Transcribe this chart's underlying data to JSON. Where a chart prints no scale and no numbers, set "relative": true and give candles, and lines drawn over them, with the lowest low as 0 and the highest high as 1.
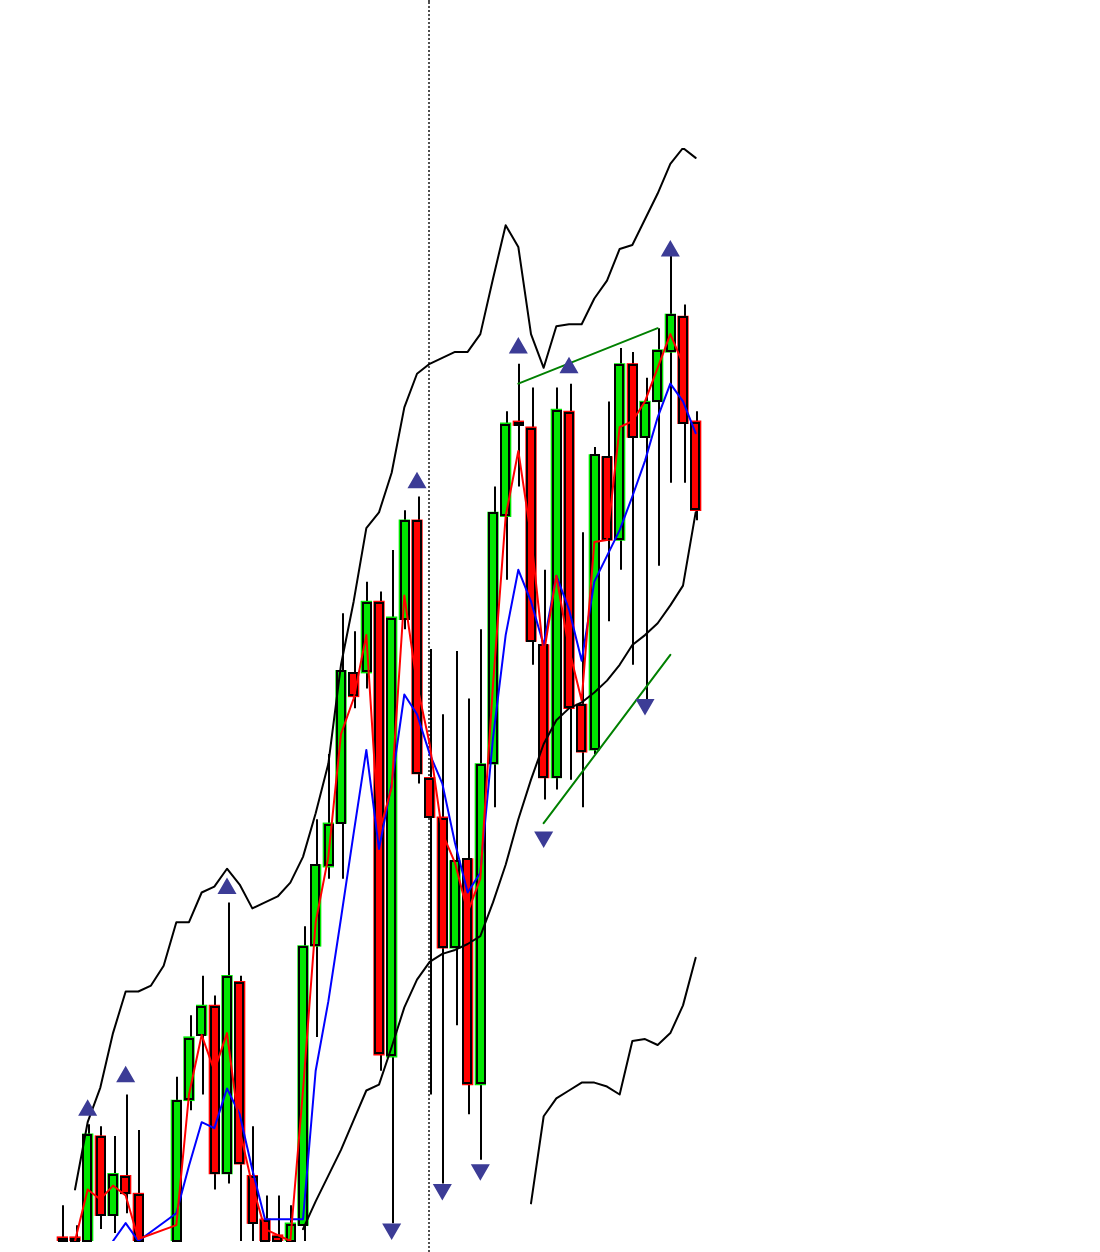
{
  "chart_data": {
    "type": "candlestick",
    "relative": true,
    "categories": [
      null,
      null,
      null,
      null,
      null,
      null,
      null,
      null,
      null,
      null,
      null,
      null,
      null,
      null,
      null,
      null,
      null,
      null,
      null,
      null,
      null,
      null,
      null,
      null,
      null,
      null,
      null,
      null,
      null,
      null,
      null,
      null,
      null,
      null,
      null,
      null,
      null,
      null,
      null,
      null,
      null,
      null,
      null,
      null,
      null,
      null,
      null,
      null,
      null,
      null,
      null
    ],
    "series": [
      {
        "ohlc": [
          [
            0.004,
            0.036,
            0,
            0
          ],
          [
            0.004,
            0.016,
            0,
            0
          ],
          [
            0,
            0.118,
            0,
            0.108
          ],
          [
            0.106,
            0.116,
            0.012,
            0.026
          ],
          [
            0.026,
            0.106,
            0.008,
            0.068
          ],
          [
            0.066,
            0.148,
            0.028,
            0.048
          ],
          [
            0.048,
            0.112,
            0,
            0
          ],
          null,
          null,
          [
            0,
            0.166,
            0,
            0.142
          ],
          [
            0.142,
            0.228,
            0.132,
            0.206
          ],
          [
            0.208,
            0.268,
            0.148,
            0.238
          ],
          [
            0.238,
            0.248,
            0.052,
            0.068
          ],
          [
            0.068,
            0.342,
            0.058,
            0.268
          ],
          [
            0.262,
            0.268,
            0,
            0.078
          ],
          [
            0.066,
            0.116,
            0,
            0.018
          ],
          [
            0.022,
            0.046,
            0,
            0
          ],
          [
            0.006,
            0.046,
            0,
            0
          ],
          [
            0,
            0.036,
            0,
            0.018
          ],
          [
            0.016,
            0.318,
            0,
            0.298
          ],
          [
            0.298,
            0.426,
            0.206,
            0.38
          ],
          [
            0.378,
            0.492,
            0.366,
            0.422
          ],
          [
            0.422,
            0.634,
            0.366,
            0.576
          ],
          [
            0.574,
            0.616,
            0.538,
            0.55
          ],
          [
            0.574,
            0.666,
            0.558,
            0.646
          ],
          [
            0.646,
            0.656,
            0.172,
            0.188
          ],
          [
            0.186,
            0.698,
            0.018,
            0.63
          ],
          [
            0.628,
            0.738,
            0.618,
            0.728
          ],
          [
            0.728,
            0.752,
            0.462,
            0.472
          ],
          [
            0.468,
            0.598,
            0.148,
            0.428
          ],
          [
            0.428,
            0.532,
            0.058,
            0.296
          ],
          [
            0.296,
            0.596,
            0.218,
            0.384
          ],
          [
            0.386,
            0.548,
            0.128,
            0.158
          ],
          [
            0.158,
            0.618,
            0.082,
            0.482
          ],
          [
            0.482,
            0.762,
            0.438,
            0.736
          ],
          [
            0.732,
            0.838,
            0.668,
            0.826
          ],
          [
            0.828,
            0.886,
            0.762,
            0.824
          ],
          [
            0.822,
            0.862,
            0.582,
            0.606
          ],
          [
            0.602,
            0.678,
            0.446,
            0.468
          ],
          [
            0.468,
            0.862,
            0.456,
            0.84
          ],
          [
            0.838,
            0.866,
            0.466,
            0.538
          ],
          [
            0.542,
            0.716,
            0.438,
            0.494
          ],
          [
            0.496,
            0.802,
            0.492,
            0.794
          ],
          [
            0.792,
            0.848,
            0.626,
            0.708
          ],
          [
            0.708,
            0.902,
            0.678,
            0.886
          ],
          [
            0.886,
            0.898,
            0.582,
            0.812
          ],
          [
            0.812,
            0.872,
            0.546,
            0.848
          ],
          [
            0.848,
            0.922,
            0.682,
            0.9
          ],
          [
            0.898,
            1.0,
            0.766,
            0.936
          ],
          [
            0.934,
            0.946,
            0.766,
            0.826
          ],
          [
            0.828,
            0.838,
            0.728,
            0.738
          ]
        ],
        "colors": [
          "#ff0000",
          "#ff0000",
          "#00e600",
          "#ff0000",
          "#00e600",
          "#ff0000",
          "#ff0000",
          null,
          null,
          "#00e600",
          "#00e600",
          "#00e600",
          "#ff0000",
          "#00e600",
          "#ff0000",
          "#ff0000",
          "#ff0000",
          "#ff0000",
          "#00e600",
          "#00e600",
          "#00e600",
          "#00e600",
          "#00e600",
          "#ff0000",
          "#00e600",
          "#ff0000",
          "#00e600",
          "#00e600",
          "#ff0000",
          "#ff0000",
          "#ff0000",
          "#00e600",
          "#ff0000",
          "#00e600",
          "#00e600",
          "#00e600",
          "#ff0000",
          "#ff0000",
          "#ff0000",
          "#00e600",
          "#ff0000",
          "#ff0000",
          "#00e600",
          "#ff0000",
          "#00e600",
          "#ff0000",
          "#00e600",
          "#00e600",
          "#00e600",
          "#ff0000",
          "#ff0000"
        ]
      },
      {
        "type": "line",
        "color": "#000000",
        "values": [
          null,
          0.052,
          0.12,
          0.155,
          0.21,
          0.252,
          0.252,
          0.258,
          0.278,
          0.322,
          0.322,
          0.352,
          0.358,
          0.376,
          0.36,
          0.336,
          0.342,
          0.348,
          0.362,
          0.388,
          0.432,
          0.482,
          0.582,
          0.646,
          0.72,
          0.736,
          0.776,
          0.842,
          0.876,
          0.886,
          0.892,
          0.898,
          0.898,
          0.916,
          0.972,
          1.026,
          1.004,
          0.916,
          0.882,
          0.924,
          0.926,
          0.926,
          0.952,
          0.97,
          1.002,
          1.006,
          1.032,
          1.058,
          1.088,
          1.104,
          1.094
        ]
      },
      {
        "type": "line",
        "color": "#000000",
        "values": [
          null,
          null,
          null,
          null,
          null,
          null,
          null,
          null,
          null,
          null,
          null,
          null,
          null,
          null,
          null,
          null,
          null,
          null,
          null,
          0.012,
          0.04,
          0.066,
          0.092,
          0.122,
          0.152,
          0.158,
          0.196,
          0.236,
          0.264,
          0.282,
          0.29,
          0.294,
          0.3,
          0.308,
          0.342,
          0.38,
          0.426,
          0.466,
          0.502,
          0.526,
          0.538,
          0.544,
          0.554,
          0.566,
          0.582,
          0.602,
          0.612,
          0.624,
          0.642,
          0.662,
          0.736
        ]
      },
      {
        "type": "line",
        "color": "#000000",
        "values": [
          null,
          null,
          null,
          null,
          null,
          null,
          null,
          null,
          null,
          null,
          null,
          null,
          null,
          null,
          null,
          null,
          null,
          null,
          null,
          null,
          null,
          null,
          null,
          null,
          null,
          null,
          null,
          null,
          null,
          null,
          null,
          null,
          null,
          null,
          null,
          null,
          null,
          0.038,
          0.126,
          0.144,
          0.152,
          0.16,
          0.16,
          0.156,
          0.148,
          0.202,
          0.204,
          0.198,
          0.21,
          0.238,
          0.286
        ]
      },
      {
        "type": "line",
        "color": "#ff0000",
        "values": [
          null,
          0,
          0.052,
          0.042,
          0.056,
          0.046,
          0.002,
          null,
          null,
          0.016,
          0.148,
          0.208,
          0.172,
          0.21,
          0.112,
          0.056,
          0.012,
          null,
          0,
          0.152,
          0.322,
          0.388,
          0.512,
          0.548,
          0.612,
          0.412,
          0.458,
          0.652,
          0.562,
          0.502,
          0.412,
          0.382,
          0.332,
          0.366,
          0.562,
          0.732,
          0.798,
          0.712,
          0.592,
          0.672,
          0.598,
          0.546,
          0.706,
          0.708,
          0.822,
          0.828,
          0.848,
          0.882,
          0.916,
          0.886,
          null
        ]
      },
      {
        "type": "line",
        "color": "#0000ff",
        "values": [
          null,
          null,
          null,
          null,
          0,
          0.018,
          0,
          null,
          null,
          0.028,
          0.076,
          0.12,
          0.114,
          0.154,
          0.128,
          0.072,
          0.022,
          null,
          null,
          0.022,
          0.172,
          0.242,
          0.326,
          0.412,
          0.496,
          0.396,
          0.462,
          0.552,
          0.532,
          0.492,
          0.462,
          0.402,
          0.352,
          0.372,
          0.508,
          0.612,
          0.678,
          0.646,
          0.602,
          0.672,
          0.638,
          0.586,
          0.666,
          0.692,
          0.718,
          0.752,
          0.788,
          0.832,
          0.866,
          0.848,
          0.816
        ]
      },
      {
        "type": "line",
        "color": "#008000",
        "values": [
          null,
          null,
          null,
          null,
          null,
          null,
          null,
          null,
          null,
          null,
          null,
          null,
          null,
          null,
          null,
          null,
          null,
          null,
          null,
          null,
          null,
          null,
          null,
          null,
          null,
          null,
          null,
          null,
          null,
          null,
          null,
          null,
          null,
          null,
          null,
          null,
          0.866,
          null,
          null,
          null,
          null,
          null,
          null,
          null,
          null,
          null,
          null,
          0.922,
          null,
          null,
          null
        ]
      },
      {
        "type": "line",
        "color": "#008000",
        "values": [
          null,
          null,
          null,
          null,
          null,
          null,
          null,
          null,
          null,
          null,
          null,
          null,
          null,
          null,
          null,
          null,
          null,
          null,
          null,
          null,
          null,
          null,
          null,
          null,
          null,
          null,
          null,
          null,
          null,
          null,
          null,
          null,
          null,
          null,
          null,
          null,
          null,
          null,
          0.422,
          null,
          null,
          null,
          null,
          null,
          null,
          null,
          null,
          null,
          0.592,
          null,
          null
        ]
      },
      {
        "type": "scatter",
        "color": "#3c3c96",
        "marker": "triangle",
        "values": [
          null,
          null,
          0.132,
          null,
          null,
          0.166,
          null,
          null,
          null,
          null,
          null,
          null,
          null,
          0.356,
          null,
          null,
          null,
          null,
          null,
          null,
          null,
          null,
          null,
          null,
          null,
          null,
          null,
          null,
          0.766,
          null,
          null,
          null,
          null,
          null,
          null,
          null,
          0.902,
          null,
          null,
          null,
          0.882,
          null,
          null,
          null,
          null,
          null,
          null,
          null,
          1.0,
          null,
          null
        ]
      },
      {
        "type": "scatter",
        "color": "#3c3c96",
        "marker": "triangle",
        "values": [
          null,
          null,
          null,
          null,
          null,
          null,
          null,
          null,
          null,
          null,
          null,
          null,
          null,
          null,
          null,
          null,
          null,
          null,
          null,
          null,
          null,
          null,
          null,
          null,
          null,
          null,
          0.012,
          null,
          null,
          null,
          0.052,
          null,
          null,
          0.072,
          null,
          null,
          null,
          null,
          0.408,
          null,
          null,
          null,
          null,
          null,
          null,
          null,
          0.542,
          null,
          null,
          null,
          null
        ]
      }
    ]
  }
}
